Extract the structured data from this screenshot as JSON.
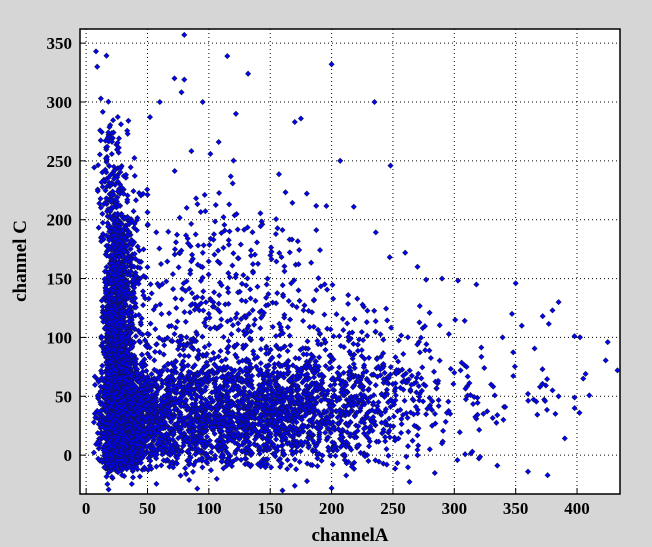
{
  "chart_data": {
    "type": "scatter",
    "title": "",
    "xlabel": "channelA",
    "ylabel": "channel C",
    "xlim": [
      -5,
      435
    ],
    "ylim": [
      -33,
      362
    ],
    "xticks": [
      0,
      50,
      100,
      150,
      200,
      250,
      300,
      350,
      400
    ],
    "yticks": [
      0,
      50,
      100,
      150,
      200,
      250,
      300,
      350
    ],
    "grid": true,
    "grid_style": "dotted",
    "legend": "none",
    "marker": "diamond",
    "series": [
      {
        "color": "#0000ff",
        "edge_color": "#141450",
        "clusters": [
          {
            "cx": 22,
            "cy": 60,
            "sx": 8,
            "sy": 55,
            "n": 1700
          },
          {
            "cx": 30,
            "cy": 30,
            "sx": 18,
            "sy": 22,
            "n": 1100
          },
          {
            "cx": 85,
            "cy": 35,
            "sx": 45,
            "sy": 25,
            "n": 1200
          },
          {
            "cx": 165,
            "cy": 38,
            "sx": 48,
            "sy": 26,
            "n": 900
          },
          {
            "cx": 25,
            "cy": 150,
            "sx": 10,
            "sy": 45,
            "n": 500
          },
          {
            "cx": 18,
            "cy": 230,
            "sx": 8,
            "sy": 35,
            "n": 120
          },
          {
            "cx": 100,
            "cy": 120,
            "sx": 60,
            "sy": 55,
            "n": 500
          },
          {
            "cx": 240,
            "cy": 55,
            "sx": 40,
            "sy": 30,
            "n": 180
          },
          {
            "cx": 330,
            "cy": 55,
            "sx": 45,
            "sy": 30,
            "n": 45
          }
        ],
        "points": [
          [
            8,
            343
          ],
          [
            9,
            330
          ],
          [
            12,
            303
          ],
          [
            80,
            357
          ],
          [
            115,
            339
          ],
          [
            132,
            324
          ],
          [
            200,
            332
          ],
          [
            72,
            320
          ],
          [
            80,
            319
          ],
          [
            235,
            300
          ],
          [
            60,
            300
          ],
          [
            95,
            300
          ],
          [
            122,
            290
          ],
          [
            108,
            266
          ],
          [
            170,
            283
          ],
          [
            175,
            286
          ],
          [
            248,
            246
          ],
          [
            207,
            250
          ],
          [
            260,
            172
          ],
          [
            270,
            160
          ],
          [
            277,
            149
          ],
          [
            290,
            150
          ],
          [
            318,
            145
          ],
          [
            350,
            146
          ],
          [
            347,
            120
          ],
          [
            385,
            130
          ],
          [
            425,
            96
          ],
          [
            433,
            72
          ],
          [
            407,
            69
          ],
          [
            405,
            65
          ],
          [
            398,
            49
          ],
          [
            385,
            50
          ],
          [
            374,
            46
          ],
          [
            360,
            52
          ],
          [
            355,
            110
          ],
          [
            330,
            60
          ],
          [
            310,
            75
          ],
          [
            300,
            70
          ],
          [
            380,
            123
          ],
          [
            372,
            118
          ],
          [
            398,
            40
          ],
          [
            402,
            36
          ],
          [
            376,
            -17
          ],
          [
            360,
            -14
          ],
          [
            396,
            -33
          ],
          [
            335,
            34
          ],
          [
            340,
            30
          ],
          [
            380,
            55
          ],
          [
            150,
            -32
          ],
          [
            160,
            -30
          ],
          [
            170,
            -26
          ],
          [
            180,
            -22
          ],
          [
            190,
            -33
          ],
          [
            200,
            -28
          ],
          [
            230,
            -5
          ],
          [
            245,
            -8
          ],
          [
            270,
            0
          ],
          [
            280,
            5
          ],
          [
            290,
            10
          ]
        ]
      }
    ]
  }
}
